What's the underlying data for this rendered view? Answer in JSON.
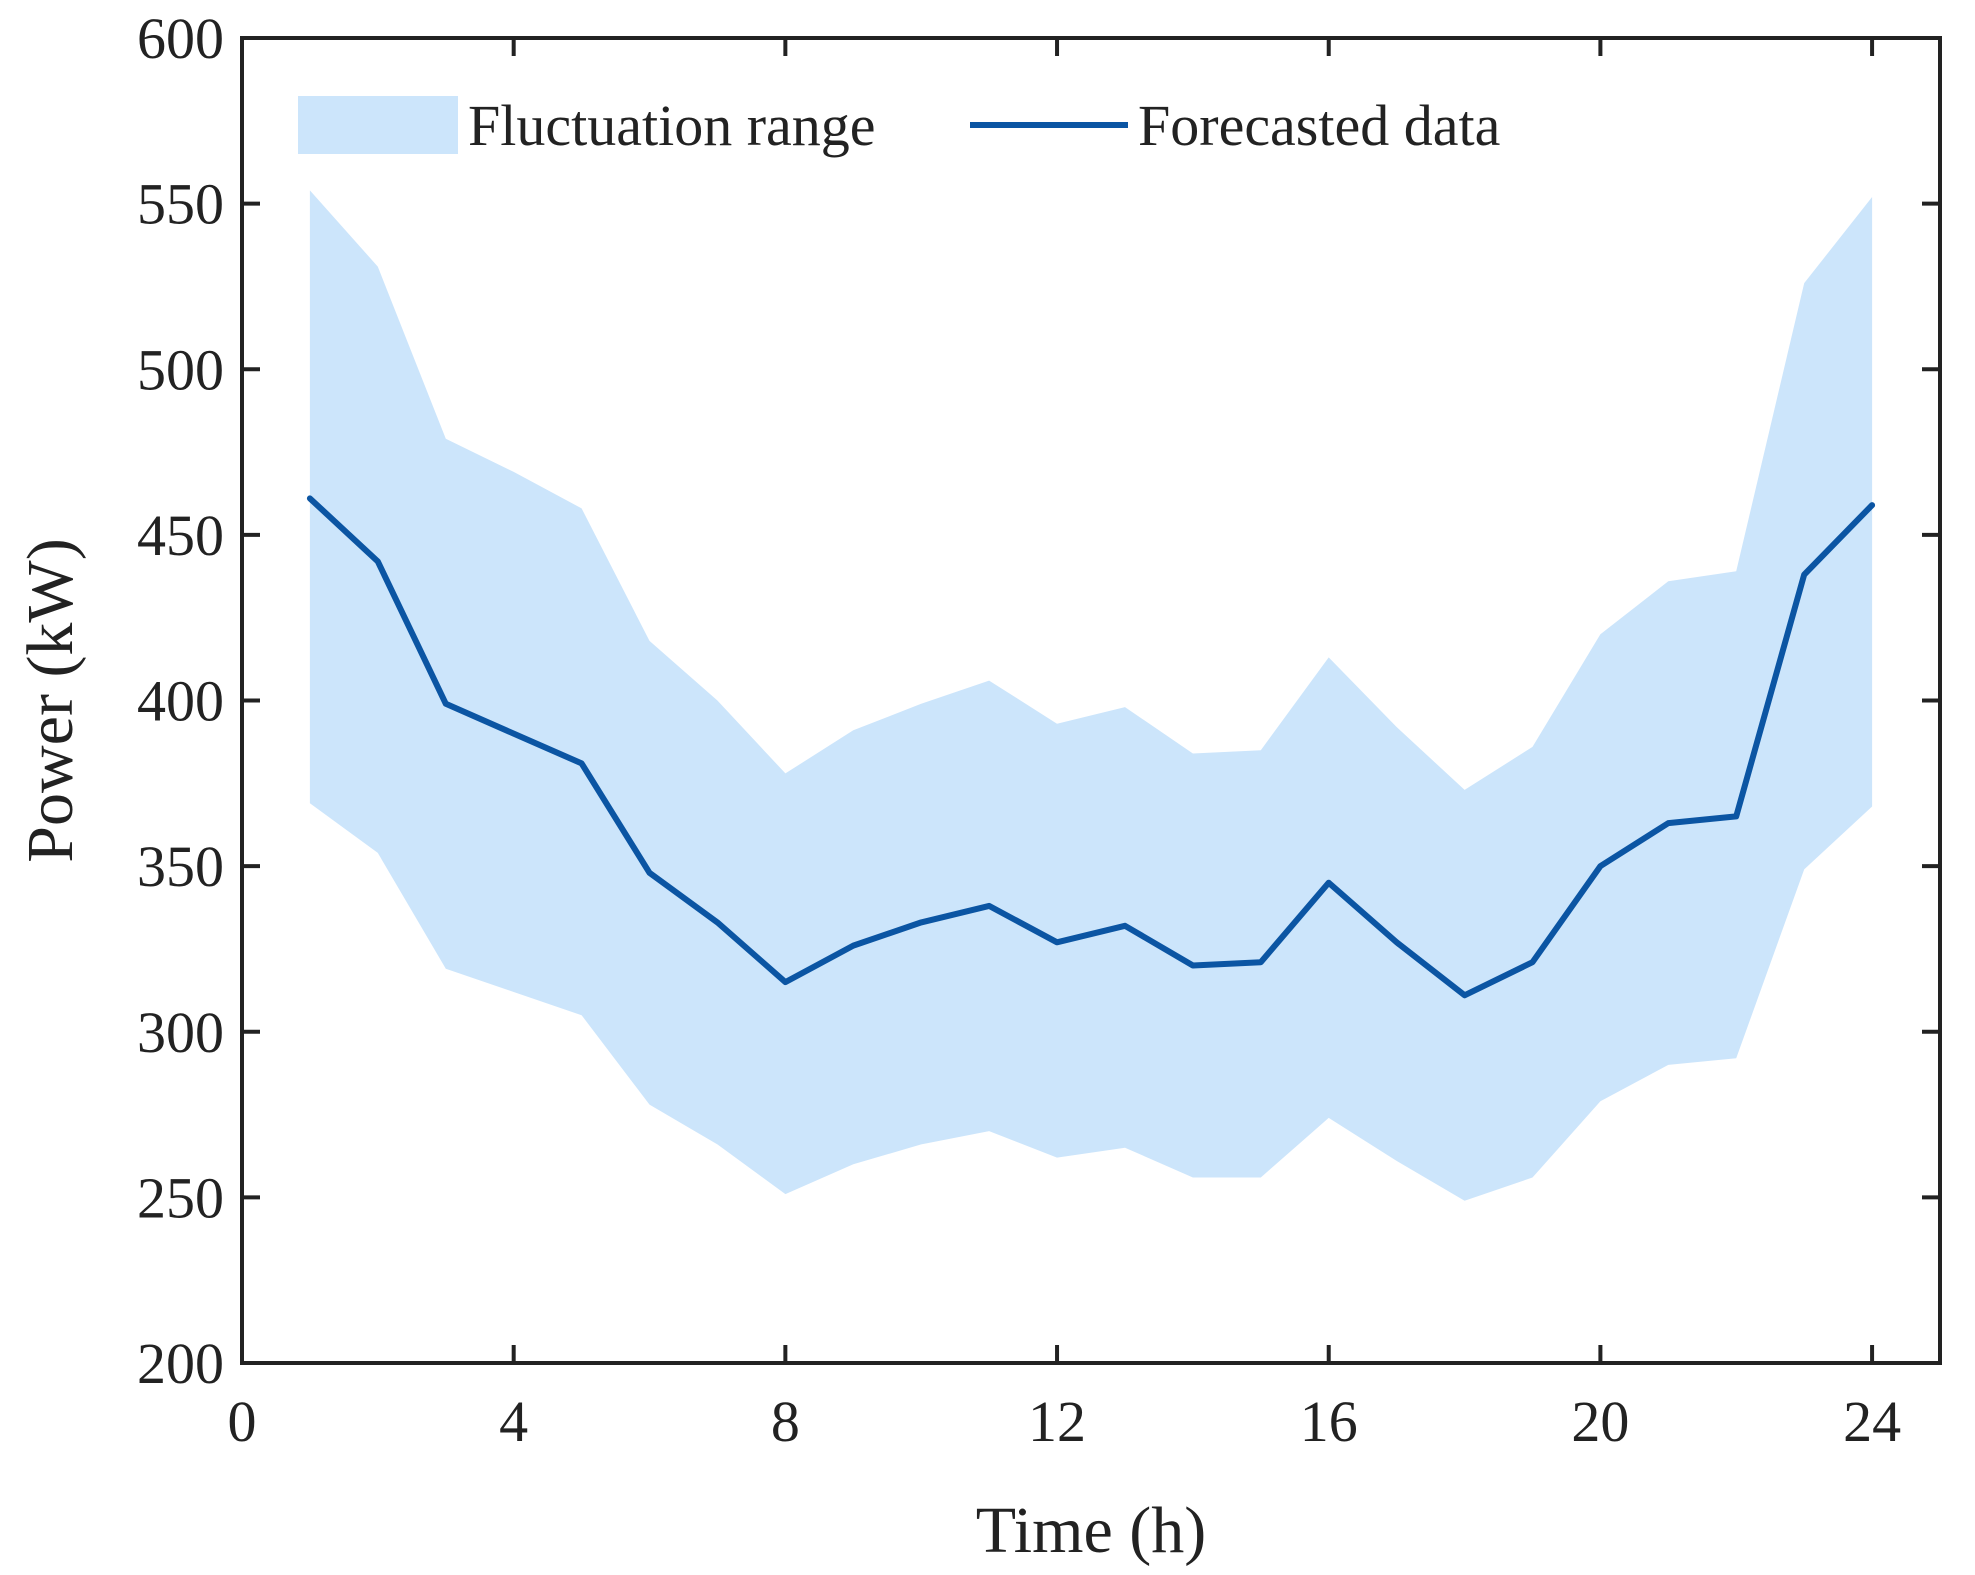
{
  "chart_data": {
    "type": "area",
    "xlabel": "Time (h)",
    "ylabel": "Power (kW)",
    "xlim": [
      0,
      25
    ],
    "ylim": [
      200,
      600
    ],
    "xticks": [
      "0",
      "4",
      "8",
      "12",
      "16",
      "20",
      "24"
    ],
    "yticks": [
      "200",
      "250",
      "300",
      "350",
      "400",
      "450",
      "500",
      "550",
      "600"
    ],
    "grid": false,
    "legend_position": "top",
    "x": [
      1,
      2,
      3,
      4,
      5,
      6,
      7,
      8,
      9,
      10,
      11,
      12,
      13,
      14,
      15,
      16,
      17,
      18,
      19,
      20,
      21,
      22,
      23,
      24
    ],
    "series": [
      {
        "name": "Fluctuation range",
        "kind": "band",
        "color": "#cce5fb",
        "upper": [
          554,
          531,
          479,
          469,
          458,
          418,
          400,
          378,
          391,
          399,
          406,
          393,
          398,
          384,
          385,
          413,
          392,
          373,
          386,
          420,
          436,
          439,
          526,
          552
        ],
        "lower": [
          369,
          354,
          319,
          312,
          305,
          278,
          266,
          251,
          260,
          266,
          270,
          262,
          265,
          256,
          256,
          274,
          261,
          249,
          256,
          279,
          290,
          292,
          349,
          368
        ]
      },
      {
        "name": "Forecasted data",
        "kind": "line",
        "color": "#0b55a3",
        "values": [
          461,
          442,
          399,
          390,
          381,
          348,
          333,
          315,
          326,
          333,
          338,
          327,
          332,
          320,
          321,
          345,
          327,
          311,
          321,
          350,
          363,
          365,
          438,
          459
        ]
      }
    ]
  }
}
